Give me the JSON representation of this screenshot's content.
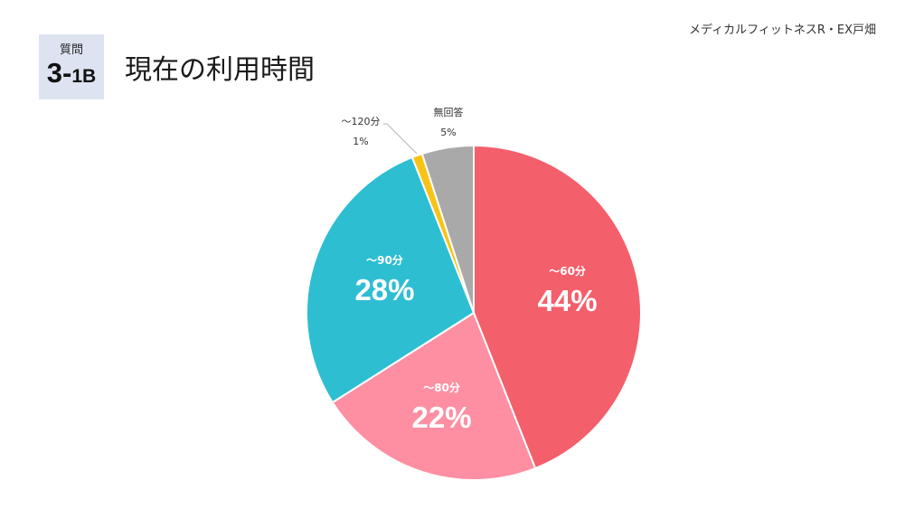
{
  "header": {
    "org": "メディカルフィットネスR・EX戸畑",
    "question_label": "質問",
    "question_num_main": "3-",
    "question_num_sub": "1B",
    "title": "現在の利用時間"
  },
  "chart_data": {
    "type": "pie",
    "title": "現在の利用時間",
    "start_angle": "12 o'clock",
    "direction": "clockwise",
    "slices": [
      {
        "label": "～60分",
        "value": 44,
        "display": "44%",
        "color": "#f45f6c",
        "label_position": "inside"
      },
      {
        "label": "～80分",
        "value": 22,
        "display": "22%",
        "color": "#fe8fa3",
        "label_position": "inside"
      },
      {
        "label": "～90分",
        "value": 28,
        "display": "28%",
        "color": "#2dbed2",
        "label_position": "inside"
      },
      {
        "label": "～120分",
        "value": 1,
        "display": "1%",
        "color": "#f8c316",
        "label_position": "outside"
      },
      {
        "label": "無回答",
        "value": 5,
        "display": "5%",
        "color": "#a9a9a9",
        "label_position": "outside"
      }
    ]
  }
}
